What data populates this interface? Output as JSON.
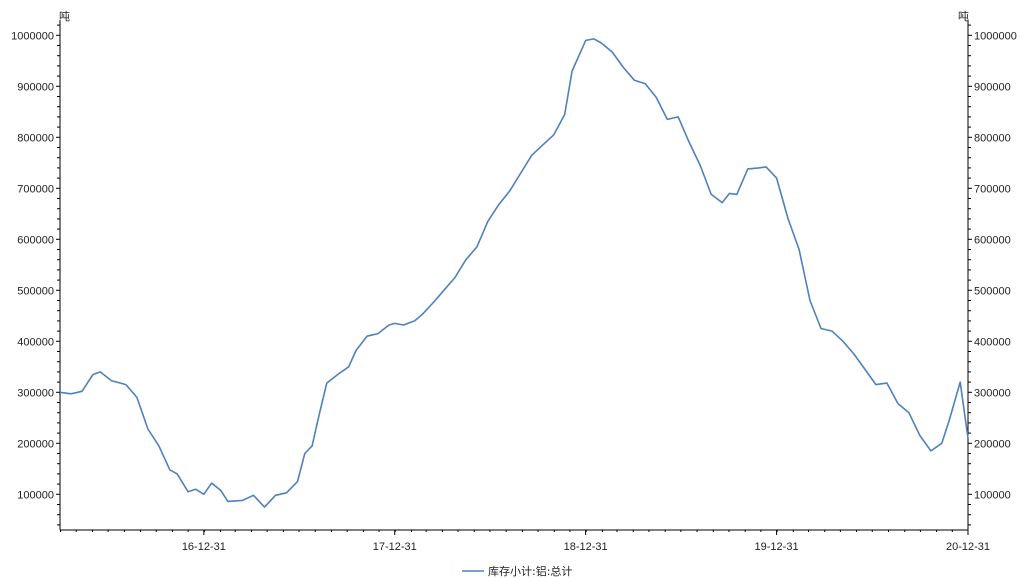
{
  "chart_data": {
    "type": "line",
    "title": "",
    "y_unit_left": "吨",
    "y_unit_right": "吨",
    "ylim": [
      30000,
      1030000
    ],
    "y_ticks": [
      100000,
      200000,
      300000,
      400000,
      500000,
      600000,
      700000,
      800000,
      900000,
      1000000
    ],
    "y_tick_labels": [
      "100000",
      "200000",
      "300000",
      "400000",
      "500000",
      "600000",
      "700000",
      "800000",
      "900000",
      "1000000"
    ],
    "x_ticks": [
      "2016-12-31",
      "2017-12-31",
      "2018-12-31",
      "2019-12-31",
      "2020-12-31"
    ],
    "x_tick_labels": [
      "16-12-31",
      "17-12-31",
      "18-12-31",
      "19-12-31",
      "20-12-31"
    ],
    "xlim": [
      "2016-03-31",
      "2020-12-31"
    ],
    "grid": false,
    "legend_position": "bottom-center",
    "series": [
      {
        "name": "库存小计:铝:总计",
        "color": "#4f81bd",
        "points": [
          [
            "2016-03-31",
            300000
          ],
          [
            "2016-04-21",
            297000
          ],
          [
            "2016-05-12",
            302000
          ],
          [
            "2016-06-02",
            335000
          ],
          [
            "2016-06-16",
            340000
          ],
          [
            "2016-07-07",
            323000
          ],
          [
            "2016-08-04",
            315000
          ],
          [
            "2016-08-25",
            290000
          ],
          [
            "2016-09-15",
            228000
          ],
          [
            "2016-10-06",
            195000
          ],
          [
            "2016-10-27",
            148000
          ],
          [
            "2016-11-10",
            140000
          ],
          [
            "2016-12-01",
            105000
          ],
          [
            "2016-12-15",
            110000
          ],
          [
            "2016-12-31",
            100000
          ],
          [
            "2017-01-15",
            122000
          ],
          [
            "2017-02-01",
            108000
          ],
          [
            "2017-02-15",
            86000
          ],
          [
            "2017-03-15",
            88000
          ],
          [
            "2017-04-05",
            98000
          ],
          [
            "2017-04-26",
            75000
          ],
          [
            "2017-05-17",
            98000
          ],
          [
            "2017-06-07",
            103000
          ],
          [
            "2017-06-28",
            125000
          ],
          [
            "2017-07-12",
            180000
          ],
          [
            "2017-07-26",
            195000
          ],
          [
            "2017-08-09",
            258000
          ],
          [
            "2017-08-23",
            318000
          ],
          [
            "2017-09-13",
            335000
          ],
          [
            "2017-10-04",
            350000
          ],
          [
            "2017-10-18",
            382000
          ],
          [
            "2017-11-08",
            410000
          ],
          [
            "2017-11-29",
            415000
          ],
          [
            "2017-12-20",
            432000
          ],
          [
            "2017-12-31",
            435000
          ],
          [
            "2018-01-17",
            432000
          ],
          [
            "2018-02-07",
            440000
          ],
          [
            "2018-02-21",
            452000
          ],
          [
            "2018-03-14",
            475000
          ],
          [
            "2018-04-04",
            500000
          ],
          [
            "2018-04-25",
            525000
          ],
          [
            "2018-05-16",
            560000
          ],
          [
            "2018-06-06",
            585000
          ],
          [
            "2018-06-27",
            635000
          ],
          [
            "2018-07-18",
            668000
          ],
          [
            "2018-08-08",
            695000
          ],
          [
            "2018-08-29",
            730000
          ],
          [
            "2018-09-19",
            765000
          ],
          [
            "2018-10-10",
            785000
          ],
          [
            "2018-10-31",
            805000
          ],
          [
            "2018-11-21",
            845000
          ],
          [
            "2018-12-05",
            930000
          ],
          [
            "2018-12-31",
            990000
          ],
          [
            "2019-01-16",
            993000
          ],
          [
            "2019-01-30",
            985000
          ],
          [
            "2019-02-20",
            967000
          ],
          [
            "2019-03-13",
            937000
          ],
          [
            "2019-04-03",
            912000
          ],
          [
            "2019-04-24",
            905000
          ],
          [
            "2019-05-15",
            878000
          ],
          [
            "2019-06-05",
            835000
          ],
          [
            "2019-06-26",
            840000
          ],
          [
            "2019-07-17",
            790000
          ],
          [
            "2019-08-07",
            745000
          ],
          [
            "2019-08-28",
            688000
          ],
          [
            "2019-09-18",
            672000
          ],
          [
            "2019-10-02",
            690000
          ],
          [
            "2019-10-16",
            688000
          ],
          [
            "2019-11-06",
            738000
          ],
          [
            "2019-11-27",
            740000
          ],
          [
            "2019-12-11",
            742000
          ],
          [
            "2019-12-31",
            720000
          ],
          [
            "2020-01-22",
            640000
          ],
          [
            "2020-02-12",
            580000
          ],
          [
            "2020-03-04",
            480000
          ],
          [
            "2020-03-25",
            425000
          ],
          [
            "2020-04-15",
            420000
          ],
          [
            "2020-05-06",
            400000
          ],
          [
            "2020-05-27",
            375000
          ],
          [
            "2020-06-17",
            345000
          ],
          [
            "2020-07-08",
            315000
          ],
          [
            "2020-07-29",
            318000
          ],
          [
            "2020-08-19",
            278000
          ],
          [
            "2020-09-09",
            260000
          ],
          [
            "2020-09-30",
            215000
          ],
          [
            "2020-10-21",
            185000
          ],
          [
            "2020-11-11",
            200000
          ],
          [
            "2020-11-25",
            245000
          ],
          [
            "2020-12-16",
            320000
          ],
          [
            "2020-12-31",
            210000
          ]
        ]
      }
    ]
  }
}
